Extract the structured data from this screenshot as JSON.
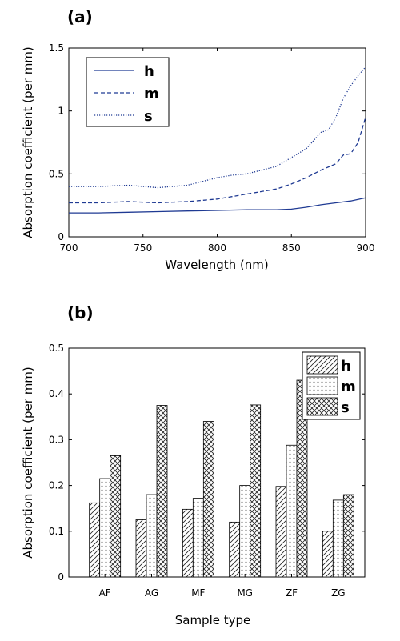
{
  "panels": {
    "a_label": "(a)",
    "b_label": "(b)"
  },
  "chart_data": [
    {
      "type": "line",
      "xlabel": "Wavelength (nm)",
      "ylabel": "Absorption coefficient (per mm)",
      "xlim": [
        700,
        900
      ],
      "ylim": [
        0,
        1.5
      ],
      "xticks": [
        "700",
        "750",
        "800",
        "850",
        "900"
      ],
      "yticks": [
        "0",
        "0.5",
        "1",
        "1.5"
      ],
      "grid": false,
      "legend_position": "top-left",
      "color": "#1f3a93",
      "series": [
        {
          "name": "h",
          "style": "solid",
          "x": [
            700,
            720,
            740,
            760,
            780,
            800,
            820,
            840,
            850,
            860,
            870,
            880,
            890,
            900
          ],
          "y": [
            0.19,
            0.19,
            0.195,
            0.2,
            0.205,
            0.21,
            0.215,
            0.215,
            0.22,
            0.235,
            0.255,
            0.27,
            0.285,
            0.31
          ]
        },
        {
          "name": "m",
          "style": "dashed",
          "x": [
            700,
            720,
            740,
            760,
            780,
            790,
            800,
            810,
            820,
            830,
            840,
            850,
            860,
            870,
            880,
            885,
            890,
            895,
            900
          ],
          "y": [
            0.27,
            0.27,
            0.28,
            0.27,
            0.28,
            0.29,
            0.3,
            0.32,
            0.34,
            0.36,
            0.38,
            0.42,
            0.47,
            0.53,
            0.58,
            0.65,
            0.66,
            0.75,
            0.95
          ]
        },
        {
          "name": "s",
          "style": "dotted",
          "x": [
            700,
            720,
            740,
            760,
            780,
            790,
            800,
            810,
            820,
            830,
            840,
            850,
            860,
            870,
            875,
            880,
            885,
            890,
            895,
            900
          ],
          "y": [
            0.4,
            0.4,
            0.41,
            0.39,
            0.41,
            0.44,
            0.47,
            0.49,
            0.5,
            0.53,
            0.56,
            0.63,
            0.7,
            0.83,
            0.85,
            0.95,
            1.1,
            1.2,
            1.28,
            1.35
          ]
        }
      ]
    },
    {
      "type": "bar",
      "xlabel": "Sample type",
      "ylabel": "Absorption coefficient (per mm)",
      "ylim": [
        0,
        0.5
      ],
      "yticks": [
        "0",
        "0.1",
        "0.2",
        "0.3",
        "0.4",
        "0.5"
      ],
      "grid": false,
      "legend_position": "top-right",
      "categories": [
        "AF",
        "AG",
        "MF",
        "MG",
        "ZF",
        "ZG"
      ],
      "series": [
        {
          "name": "h",
          "pattern": "diagonal-hatch",
          "values": [
            0.162,
            0.125,
            0.148,
            0.12,
            0.198,
            0.1
          ]
        },
        {
          "name": "m",
          "pattern": "dots",
          "values": [
            0.215,
            0.18,
            0.172,
            0.2,
            0.288,
            0.168
          ]
        },
        {
          "name": "s",
          "pattern": "crosshatch",
          "values": [
            0.265,
            0.375,
            0.34,
            0.376,
            0.43,
            0.18
          ]
        }
      ]
    }
  ]
}
